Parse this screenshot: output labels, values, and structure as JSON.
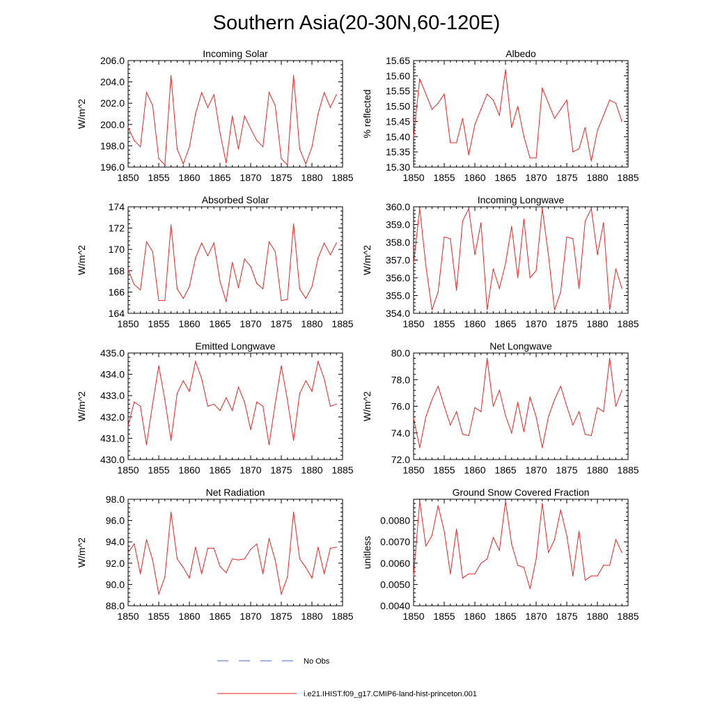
{
  "figure": {
    "title": "Southern Asia(20-30N,60-120E)",
    "line_color": "#e8251f",
    "obs_color": "#4a5fcf",
    "legend": {
      "obs_label": "No Obs",
      "model_label": "i.e21.IHIST.f09_g17.CMIP6-land-hist-princeton.001"
    }
  },
  "chart_data": [
    {
      "type": "line",
      "title": "Incoming Solar",
      "ylabel": "W/m^2",
      "xlim": [
        1850,
        1885
      ],
      "ylim": [
        196.0,
        206.0
      ],
      "xticks": [
        "1850",
        "1855",
        "1860",
        "1865",
        "1870",
        "1875",
        "1880",
        "1885"
      ],
      "yticks": [
        "196.0",
        "198.0",
        "200.0",
        "202.0",
        "204.0",
        "206.0"
      ],
      "x": [
        1850,
        1851,
        1852,
        1853,
        1854,
        1855,
        1856,
        1857,
        1858,
        1859,
        1860,
        1861,
        1862,
        1863,
        1864,
        1865,
        1866,
        1867,
        1868,
        1869,
        1870,
        1871,
        1872,
        1873,
        1874,
        1875,
        1876,
        1877,
        1878,
        1879,
        1880,
        1881,
        1882,
        1883,
        1884
      ],
      "y": [
        199.7,
        198.5,
        197.9,
        203.0,
        201.8,
        196.8,
        196.2,
        204.6,
        197.7,
        196.3,
        197.9,
        201.0,
        203.0,
        201.6,
        202.8,
        199.2,
        196.4,
        200.8,
        197.7,
        200.8,
        199.6,
        198.5,
        197.9,
        203.0,
        201.8,
        196.8,
        196.2,
        204.6,
        197.7,
        196.3,
        197.9,
        201.0,
        203.0,
        201.6,
        202.8
      ]
    },
    {
      "type": "line",
      "title": "Albedo",
      "ylabel": "% reflected",
      "xlim": [
        1850,
        1885
      ],
      "ylim": [
        15.3,
        15.65
      ],
      "xticks": [
        "1850",
        "1855",
        "1860",
        "1865",
        "1870",
        "1875",
        "1880",
        "1885"
      ],
      "yticks": [
        "15.30",
        "15.35",
        "15.40",
        "15.45",
        "15.50",
        "15.55",
        "15.60",
        "15.65"
      ],
      "x": [
        1850,
        1851,
        1852,
        1853,
        1854,
        1855,
        1856,
        1857,
        1858,
        1859,
        1860,
        1861,
        1862,
        1863,
        1864,
        1865,
        1866,
        1867,
        1868,
        1869,
        1870,
        1871,
        1872,
        1873,
        1874,
        1875,
        1876,
        1877,
        1878,
        1879,
        1880,
        1881,
        1882,
        1883,
        1884
      ],
      "y": [
        15.4,
        15.59,
        15.54,
        15.49,
        15.51,
        15.54,
        15.38,
        15.38,
        15.46,
        15.34,
        15.44,
        15.49,
        15.54,
        15.52,
        15.47,
        15.62,
        15.43,
        15.5,
        15.4,
        15.33,
        15.33,
        15.56,
        15.51,
        15.46,
        15.49,
        15.52,
        15.35,
        15.36,
        15.43,
        15.32,
        15.42,
        15.47,
        15.52,
        15.51,
        15.45
      ]
    },
    {
      "type": "line",
      "title": "Absorbed Solar",
      "ylabel": "W/m^2",
      "xlim": [
        1850,
        1885
      ],
      "ylim": [
        164,
        174
      ],
      "xticks": [
        "1850",
        "1855",
        "1860",
        "1865",
        "1870",
        "1875",
        "1880",
        "1885"
      ],
      "yticks": [
        "164",
        "166",
        "168",
        "170",
        "172",
        "174"
      ],
      "x": [
        1850,
        1851,
        1852,
        1853,
        1854,
        1855,
        1856,
        1857,
        1858,
        1859,
        1860,
        1861,
        1862,
        1863,
        1864,
        1865,
        1866,
        1867,
        1868,
        1869,
        1870,
        1871,
        1872,
        1873,
        1874,
        1875,
        1876,
        1877,
        1878,
        1879,
        1880,
        1881,
        1882,
        1883,
        1884
      ],
      "y": [
        168.1,
        166.7,
        166.2,
        170.7,
        169.8,
        165.2,
        165.2,
        172.3,
        166.3,
        165.4,
        166.5,
        169.2,
        170.6,
        169.4,
        170.6,
        167.0,
        165.1,
        168.8,
        166.4,
        169.1,
        168.4,
        166.8,
        166.3,
        170.7,
        169.8,
        165.2,
        165.3,
        172.4,
        166.3,
        165.4,
        166.5,
        169.2,
        170.6,
        169.5,
        170.6
      ]
    },
    {
      "type": "line",
      "title": "Incoming Longwave",
      "ylabel": "W/m^2",
      "xlim": [
        1850,
        1885
      ],
      "ylim": [
        354.0,
        360.0
      ],
      "xticks": [
        "1850",
        "1855",
        "1860",
        "1865",
        "1870",
        "1875",
        "1880",
        "1885"
      ],
      "yticks": [
        "354.0",
        "355.0",
        "356.0",
        "357.0",
        "358.0",
        "359.0",
        "360.0"
      ],
      "x": [
        1850,
        1851,
        1852,
        1853,
        1854,
        1855,
        1856,
        1857,
        1858,
        1859,
        1860,
        1861,
        1862,
        1863,
        1864,
        1865,
        1866,
        1867,
        1868,
        1869,
        1870,
        1871,
        1872,
        1873,
        1874,
        1875,
        1876,
        1877,
        1878,
        1879,
        1880,
        1881,
        1882,
        1883,
        1884
      ],
      "y": [
        356.8,
        359.9,
        356.7,
        354.2,
        355.2,
        358.3,
        358.2,
        355.3,
        359.2,
        359.9,
        357.3,
        359.1,
        354.2,
        356.5,
        355.4,
        356.8,
        358.9,
        356.0,
        359.3,
        356.0,
        356.4,
        359.9,
        357.3,
        354.2,
        355.2,
        358.3,
        358.2,
        355.4,
        359.2,
        359.9,
        357.3,
        359.1,
        354.2,
        356.5,
        355.4
      ]
    },
    {
      "type": "line",
      "title": "Emitted Longwave",
      "ylabel": "W/m^2",
      "xlim": [
        1850,
        1885
      ],
      "ylim": [
        430.0,
        435.0
      ],
      "xticks": [
        "1850",
        "1855",
        "1860",
        "1865",
        "1870",
        "1875",
        "1880",
        "1885"
      ],
      "yticks": [
        "430.0",
        "431.0",
        "432.0",
        "433.0",
        "434.0",
        "435.0"
      ],
      "x": [
        1850,
        1851,
        1852,
        1853,
        1854,
        1855,
        1856,
        1857,
        1858,
        1859,
        1860,
        1861,
        1862,
        1863,
        1864,
        1865,
        1866,
        1867,
        1868,
        1869,
        1870,
        1871,
        1872,
        1873,
        1874,
        1875,
        1876,
        1877,
        1878,
        1879,
        1880,
        1881,
        1882,
        1883,
        1884
      ],
      "y": [
        431.6,
        432.7,
        432.5,
        430.7,
        432.6,
        434.4,
        432.8,
        430.9,
        433.1,
        433.7,
        433.2,
        434.6,
        433.8,
        432.5,
        432.6,
        432.3,
        432.9,
        432.3,
        433.4,
        432.7,
        431.4,
        432.7,
        432.5,
        430.7,
        432.6,
        434.4,
        432.8,
        430.9,
        433.1,
        433.7,
        433.2,
        434.6,
        433.8,
        432.5,
        432.6
      ]
    },
    {
      "type": "line",
      "title": "Net Longwave",
      "ylabel": "W/m^2",
      "xlim": [
        1850,
        1885
      ],
      "ylim": [
        72.0,
        80.0
      ],
      "xticks": [
        "1850",
        "1855",
        "1860",
        "1865",
        "1870",
        "1875",
        "1880",
        "1885"
      ],
      "yticks": [
        "72.0",
        "74.0",
        "76.0",
        "78.0",
        "80.0"
      ],
      "x": [
        1850,
        1851,
        1852,
        1853,
        1854,
        1855,
        1856,
        1857,
        1858,
        1859,
        1860,
        1861,
        1862,
        1863,
        1864,
        1865,
        1866,
        1867,
        1868,
        1869,
        1870,
        1871,
        1872,
        1873,
        1874,
        1875,
        1876,
        1877,
        1878,
        1879,
        1880,
        1881,
        1882,
        1883,
        1884
      ],
      "y": [
        75.1,
        72.9,
        75.2,
        76.5,
        77.5,
        76.0,
        74.6,
        75.6,
        73.9,
        73.8,
        75.9,
        75.6,
        79.6,
        76.0,
        77.2,
        75.3,
        74.0,
        76.3,
        74.1,
        76.7,
        75.2,
        72.9,
        75.2,
        76.5,
        77.5,
        76.0,
        74.6,
        75.6,
        73.9,
        73.8,
        75.9,
        75.6,
        79.6,
        76.0,
        77.2
      ]
    },
    {
      "type": "line",
      "title": "Net Radiation",
      "ylabel": "W/m^2",
      "xlim": [
        1850,
        1885
      ],
      "ylim": [
        88.0,
        98.0
      ],
      "xticks": [
        "1850",
        "1855",
        "1860",
        "1865",
        "1870",
        "1875",
        "1880",
        "1885"
      ],
      "yticks": [
        "88.0",
        "90.0",
        "92.0",
        "94.0",
        "96.0",
        "98.0"
      ],
      "x": [
        1850,
        1851,
        1852,
        1853,
        1854,
        1855,
        1856,
        1857,
        1858,
        1859,
        1860,
        1861,
        1862,
        1863,
        1864,
        1865,
        1866,
        1867,
        1868,
        1869,
        1870,
        1871,
        1872,
        1873,
        1874,
        1875,
        1876,
        1877,
        1878,
        1879,
        1880,
        1881,
        1882,
        1883,
        1884
      ],
      "y": [
        93.0,
        93.8,
        91.0,
        94.2,
        92.3,
        89.1,
        90.7,
        96.8,
        92.4,
        91.6,
        90.6,
        93.5,
        91.0,
        93.4,
        93.4,
        91.7,
        91.1,
        92.4,
        92.3,
        92.4,
        93.3,
        93.8,
        91.0,
        94.3,
        92.3,
        89.1,
        90.7,
        96.8,
        92.4,
        91.6,
        90.6,
        93.5,
        91.0,
        93.4,
        93.5
      ]
    },
    {
      "type": "line",
      "title": "Ground Snow Covered Fraction",
      "ylabel": "unitless",
      "xlim": [
        1850,
        1885
      ],
      "ylim": [
        0.004,
        0.009
      ],
      "xticks": [
        "1850",
        "1855",
        "1860",
        "1865",
        "1870",
        "1875",
        "1880",
        "1885"
      ],
      "yticks": [
        "0.0040",
        "0.0050",
        "0.0060",
        "0.0070",
        "0.0080"
      ],
      "x": [
        1850,
        1851,
        1852,
        1853,
        1854,
        1855,
        1856,
        1857,
        1858,
        1859,
        1860,
        1861,
        1862,
        1863,
        1864,
        1865,
        1866,
        1867,
        1868,
        1869,
        1870,
        1871,
        1872,
        1873,
        1874,
        1875,
        1876,
        1877,
        1878,
        1879,
        1880,
        1881,
        1882,
        1883,
        1884
      ],
      "y": [
        0.0054,
        0.0089,
        0.0068,
        0.0073,
        0.0087,
        0.0075,
        0.0055,
        0.0076,
        0.0053,
        0.0055,
        0.0055,
        0.006,
        0.0062,
        0.0072,
        0.0066,
        0.0089,
        0.0069,
        0.0059,
        0.0058,
        0.0048,
        0.0062,
        0.0088,
        0.0065,
        0.0071,
        0.0085,
        0.0073,
        0.0054,
        0.0075,
        0.0052,
        0.0054,
        0.0054,
        0.0059,
        0.0059,
        0.0071,
        0.0065
      ]
    }
  ]
}
